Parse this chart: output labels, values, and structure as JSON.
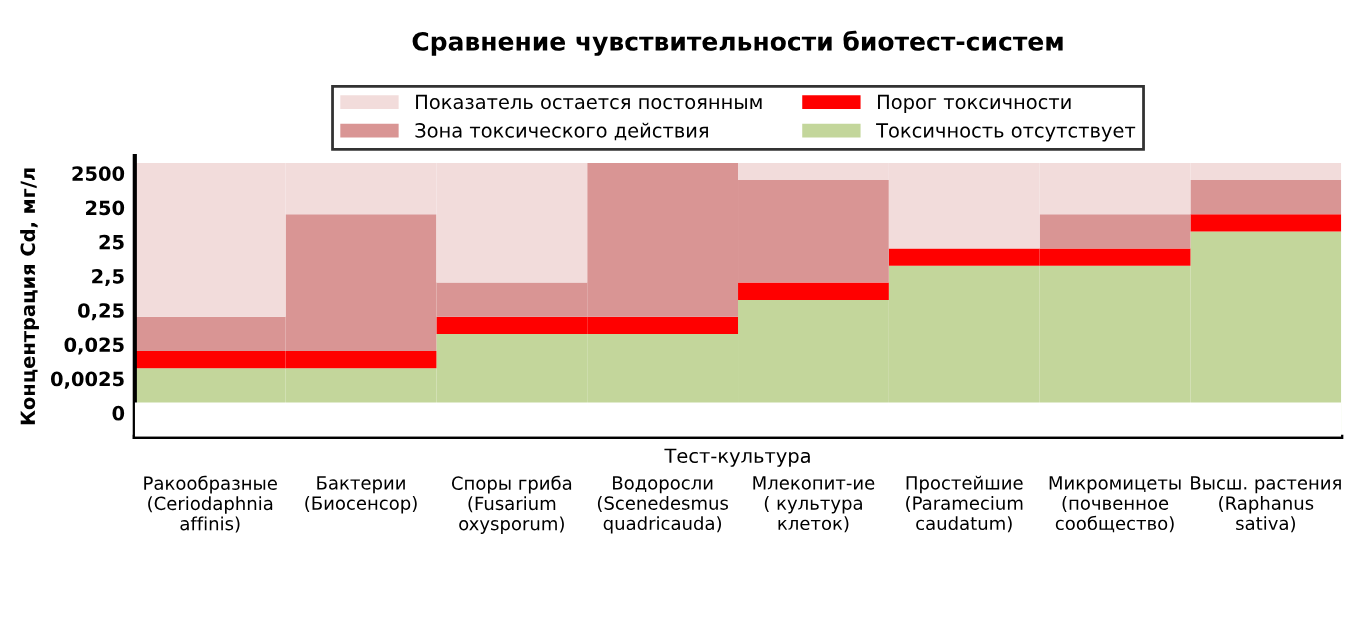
{
  "chart_data": {
    "type": "bar",
    "stacked": true,
    "title": "Сравнение чувствительности биотест-систем",
    "xlabel": "Тест-культура",
    "ylabel": "Концентрация Cd, мг/л",
    "categories": [
      "Ракообразные\n(Ceriodaphnia\naffinis)",
      "Бактерии\n(Биосенсор)",
      "Споры гриба\n(Fusarium\noxysporum)",
      "Водоросли\n(Scenedesmus\nquadricauda)",
      "Млекопит-ие\n( культура\nклеток)",
      "Простейшие\n(Paramecium\ncaudatum)",
      "Микромицеты\n(почвенное\nсообщество)",
      "Высш. растения\n(Raphanus\nsativa)"
    ],
    "series": [
      {
        "name": "Токсичность отсутствует",
        "color": "#c3d69b",
        "values": [
          0.005,
          0.005,
          0.05,
          0.05,
          0.5,
          5,
          5,
          50
        ]
      },
      {
        "name": "Порог токсичности",
        "color": "#ff0000",
        "values": [
          0.011,
          0.011,
          0.11,
          0.11,
          1.1,
          11,
          11,
          110
        ]
      },
      {
        "name": "Зона токсического действия",
        "color": "#d99594",
        "values": [
          0.144,
          159.984,
          1.44,
          4999.84,
          1598.4,
          null,
          144,
          1440
        ]
      },
      {
        "name": "Показатель остается постоянным",
        "color": "#f2dcdb",
        "values": [
          4999.84,
          4840,
          4998.4,
          null,
          3400,
          4984,
          4840,
          3400
        ]
      }
    ],
    "log": "y",
    "bands": [
      {
        "axis": "y",
        "from": 5e-05,
        "to": 0.0005,
        "color": "#ffffff"
      }
    ],
    "ylim": [
      5e-05,
      8000
    ],
    "yticks": [
      {
        "value": 0.00025,
        "label": "0"
      },
      {
        "value": 0.0025,
        "label": "0,0025"
      },
      {
        "value": 0.025,
        "label": "0,025"
      },
      {
        "value": 0.25,
        "label": "0,25"
      },
      {
        "value": 2.5,
        "label": "2,5"
      },
      {
        "value": 25,
        "label": "25"
      },
      {
        "value": 250,
        "label": "250"
      },
      {
        "value": 2500,
        "label": "2500"
      }
    ],
    "grid": false,
    "legend": "top"
  }
}
